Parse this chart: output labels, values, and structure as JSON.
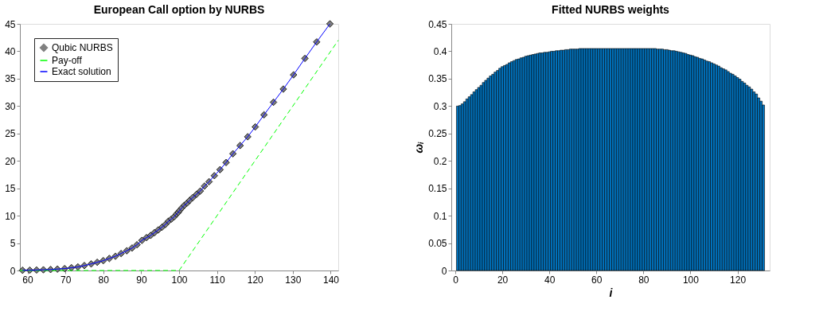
{
  "chart_data": [
    {
      "type": "line",
      "title": "European Call option by NURBS",
      "xlim": [
        58,
        142
      ],
      "xticks": [
        60,
        70,
        80,
        90,
        100,
        110,
        120,
        130,
        140
      ],
      "ylim": [
        0,
        45
      ],
      "yticks": [
        0,
        5,
        10,
        15,
        20,
        25,
        30,
        35,
        40,
        45
      ],
      "grid": false,
      "legend": "top left",
      "series": [
        {
          "name": "Qubic NURBS",
          "type": "scatter",
          "marker": "diamond",
          "color": "#808080",
          "x": [
            58.7,
            60.6,
            62.4,
            64.2,
            66.1,
            67.9,
            69.8,
            71.6,
            73.3,
            75.0,
            76.8,
            78.4,
            80.0,
            81.6,
            83.2,
            84.7,
            86.2,
            87.6,
            88.9,
            90.2,
            91.4,
            92.5,
            93.5,
            94.5,
            95.5,
            96.4,
            97.2,
            98.0,
            98.7,
            99.3,
            99.8,
            100.2,
            100.7,
            101.4,
            102.1,
            102.8,
            103.6,
            104.6,
            105.6,
            106.7,
            107.9,
            109.3,
            110.8,
            112.4,
            114.2,
            116.1,
            118.1,
            120.1,
            122.4,
            124.9,
            127.5,
            130.2,
            133.2,
            136.3,
            139.8
          ],
          "values": [
            0.04,
            0.06,
            0.09,
            0.13,
            0.18,
            0.26,
            0.35,
            0.5,
            0.65,
            0.9,
            1.2,
            1.5,
            1.8,
            2.2,
            2.6,
            3.1,
            3.6,
            4.1,
            4.7,
            5.5,
            6.0,
            6.4,
            6.9,
            7.4,
            7.9,
            8.4,
            9.0,
            9.4,
            9.8,
            10.3,
            10.6,
            11.0,
            11.4,
            11.9,
            12.3,
            12.8,
            13.3,
            13.9,
            14.5,
            15.4,
            16.2,
            17.3,
            18.4,
            19.7,
            21.3,
            22.8,
            24.4,
            26.2,
            28.4,
            30.7,
            33.1,
            35.7,
            38.7,
            41.7,
            45.0
          ]
        },
        {
          "name": "Pay-off",
          "type": "line",
          "line_style": "dashed",
          "color": "#00ff00",
          "x": [
            58,
            100,
            142
          ],
          "values": [
            0,
            0,
            42
          ]
        },
        {
          "name": "Exact solution",
          "type": "line",
          "line_style": "solid",
          "color": "#0000ff",
          "x": [
            58.7,
            60.6,
            62.4,
            64.2,
            66.1,
            67.9,
            69.8,
            71.6,
            73.3,
            75.0,
            76.8,
            78.4,
            80.0,
            81.6,
            83.2,
            84.7,
            86.2,
            87.6,
            88.9,
            90.2,
            91.4,
            92.5,
            93.5,
            94.5,
            95.5,
            96.4,
            97.2,
            98.0,
            98.7,
            99.3,
            99.8,
            100.2,
            100.7,
            101.4,
            102.1,
            102.8,
            103.6,
            104.6,
            105.6,
            106.7,
            107.9,
            109.3,
            110.8,
            112.4,
            114.2,
            116.1,
            118.1,
            120.1,
            122.4,
            124.9,
            127.5,
            130.2,
            133.2,
            136.3,
            139.8
          ],
          "values": [
            0.04,
            0.06,
            0.09,
            0.13,
            0.18,
            0.26,
            0.35,
            0.5,
            0.65,
            0.9,
            1.2,
            1.5,
            1.8,
            2.2,
            2.6,
            3.1,
            3.6,
            4.1,
            4.7,
            5.5,
            6.0,
            6.4,
            6.9,
            7.4,
            7.9,
            8.4,
            9.0,
            9.4,
            9.8,
            10.3,
            10.6,
            11.0,
            11.4,
            11.9,
            12.3,
            12.8,
            13.3,
            13.9,
            14.5,
            15.4,
            16.2,
            17.3,
            18.4,
            19.7,
            21.3,
            22.8,
            24.4,
            26.2,
            28.4,
            30.7,
            33.1,
            35.7,
            38.7,
            41.7,
            45.0
          ]
        }
      ]
    },
    {
      "type": "bar",
      "title": "Fitted NURBS weights",
      "xlabel": "i",
      "ylabel": "ωᵢ",
      "xlim": [
        0,
        132
      ],
      "xticks": [
        0,
        20,
        40,
        60,
        80,
        100,
        120
      ],
      "ylim": [
        0,
        0.45
      ],
      "yticks": [
        0,
        0.05,
        0.1,
        0.15,
        0.2,
        0.25,
        0.3,
        0.35,
        0.4,
        0.45
      ],
      "grid": false,
      "color": "#0072bd",
      "x": [
        1,
        2,
        3,
        4,
        5,
        6,
        7,
        8,
        9,
        10,
        11,
        12,
        13,
        14,
        15,
        16,
        17,
        18,
        19,
        20,
        21,
        22,
        23,
        24,
        25,
        26,
        27,
        28,
        29,
        30,
        31,
        32,
        33,
        34,
        35,
        36,
        37,
        38,
        39,
        40,
        41,
        42,
        43,
        44,
        45,
        46,
        47,
        48,
        49,
        50,
        51,
        52,
        53,
        54,
        55,
        56,
        57,
        58,
        59,
        60,
        61,
        62,
        63,
        64,
        65,
        66,
        67,
        68,
        69,
        70,
        71,
        72,
        73,
        74,
        75,
        76,
        77,
        78,
        79,
        80,
        81,
        82,
        83,
        84,
        85,
        86,
        87,
        88,
        89,
        90,
        91,
        92,
        93,
        94,
        95,
        96,
        97,
        98,
        99,
        100,
        101,
        102,
        103,
        104,
        105,
        106,
        107,
        108,
        109,
        110,
        111,
        112,
        113,
        114,
        115,
        116,
        117,
        118,
        119,
        120,
        121,
        122,
        123,
        124,
        125,
        126,
        127,
        128,
        129,
        130,
        131
      ],
      "values": [
        0.3,
        0.301,
        0.304,
        0.308,
        0.313,
        0.317,
        0.321,
        0.326,
        0.33,
        0.334,
        0.338,
        0.343,
        0.347,
        0.351,
        0.355,
        0.358,
        0.362,
        0.365,
        0.369,
        0.372,
        0.374,
        0.376,
        0.379,
        0.381,
        0.383,
        0.385,
        0.386,
        0.388,
        0.389,
        0.391,
        0.392,
        0.393,
        0.394,
        0.395,
        0.396,
        0.397,
        0.397,
        0.398,
        0.398,
        0.399,
        0.4,
        0.4,
        0.401,
        0.401,
        0.402,
        0.402,
        0.403,
        0.403,
        0.404,
        0.404,
        0.404,
        0.404,
        0.405,
        0.405,
        0.405,
        0.405,
        0.405,
        0.405,
        0.405,
        0.405,
        0.405,
        0.405,
        0.405,
        0.405,
        0.405,
        0.405,
        0.405,
        0.405,
        0.405,
        0.405,
        0.405,
        0.405,
        0.405,
        0.405,
        0.405,
        0.405,
        0.405,
        0.405,
        0.405,
        0.405,
        0.405,
        0.405,
        0.405,
        0.405,
        0.405,
        0.404,
        0.404,
        0.404,
        0.403,
        0.403,
        0.402,
        0.401,
        0.401,
        0.4,
        0.399,
        0.398,
        0.397,
        0.396,
        0.394,
        0.393,
        0.392,
        0.39,
        0.389,
        0.387,
        0.386,
        0.384,
        0.382,
        0.381,
        0.379,
        0.377,
        0.375,
        0.373,
        0.37,
        0.368,
        0.366,
        0.363,
        0.36,
        0.358,
        0.355,
        0.352,
        0.349,
        0.345,
        0.342,
        0.338,
        0.335,
        0.331,
        0.326,
        0.322,
        0.315,
        0.309,
        0.302
      ]
    }
  ]
}
